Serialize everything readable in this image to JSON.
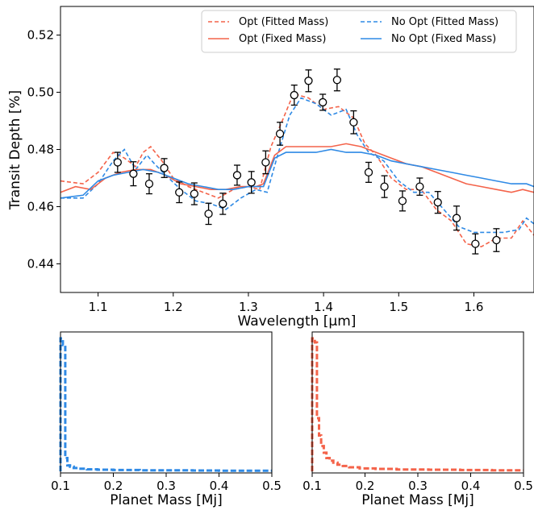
{
  "colors": {
    "opt": "#f4634a",
    "noopt": "#2f8ae5",
    "data": "#000000"
  },
  "chart_data": [
    {
      "type": "line",
      "xlabel": "Wavelength [μm]",
      "ylabel": "Transit Depth [%]",
      "xlim": [
        1.05,
        1.68
      ],
      "ylim": [
        0.43,
        0.53
      ],
      "xticks": [
        "1.1",
        "1.2",
        "1.3",
        "1.4",
        "1.5",
        "1.6"
      ],
      "yticks": [
        "0.44",
        "0.46",
        "0.48",
        "0.50",
        "0.52"
      ],
      "legend_position": "top-right",
      "legend": [
        "Opt (Fitted Mass)",
        "No Opt (Fitted Mass)",
        "Opt (Fixed Mass)",
        "No Opt (Fixed Mass)"
      ],
      "observations": {
        "x": [
          1.126,
          1.147,
          1.168,
          1.188,
          1.208,
          1.228,
          1.247,
          1.266,
          1.285,
          1.304,
          1.323,
          1.342,
          1.361,
          1.38,
          1.399,
          1.418,
          1.44,
          1.46,
          1.481,
          1.505,
          1.528,
          1.552,
          1.577,
          1.602,
          1.63
        ],
        "y": [
          0.4755,
          0.4715,
          0.468,
          0.4735,
          0.465,
          0.4645,
          0.4575,
          0.461,
          0.471,
          0.4685,
          0.4755,
          0.4855,
          0.499,
          0.504,
          0.4965,
          0.5043,
          0.4895,
          0.472,
          0.467,
          0.462,
          0.467,
          0.4615,
          0.456,
          0.447,
          0.4483
        ],
        "err": [
          0.0035,
          0.0042,
          0.0035,
          0.0033,
          0.0036,
          0.0038,
          0.0037,
          0.0037,
          0.0035,
          0.0038,
          0.004,
          0.004,
          0.0035,
          0.0038,
          0.0028,
          0.0038,
          0.004,
          0.0035,
          0.0038,
          0.0035,
          0.003,
          0.0038,
          0.0042,
          0.0035,
          0.004
        ]
      },
      "series": [
        {
          "name": "Opt (Fitted Mass)",
          "style": "dashed",
          "color": "#f4634a",
          "x": [
            1.05,
            1.08,
            1.1,
            1.12,
            1.135,
            1.15,
            1.16,
            1.17,
            1.185,
            1.2,
            1.22,
            1.24,
            1.26,
            1.28,
            1.3,
            1.315,
            1.33,
            1.345,
            1.36,
            1.38,
            1.4,
            1.42,
            1.44,
            1.455,
            1.47,
            1.49,
            1.51,
            1.53,
            1.55,
            1.57,
            1.59,
            1.61,
            1.63,
            1.65,
            1.665,
            1.68
          ],
          "y": [
            0.469,
            0.468,
            0.472,
            0.479,
            0.477,
            0.474,
            0.479,
            0.481,
            0.476,
            0.47,
            0.467,
            0.465,
            0.463,
            0.466,
            0.467,
            0.466,
            0.481,
            0.49,
            0.4995,
            0.498,
            0.494,
            0.495,
            0.491,
            0.482,
            0.478,
            0.47,
            0.466,
            0.466,
            0.459,
            0.455,
            0.447,
            0.446,
            0.449,
            0.449,
            0.455,
            0.45
          ]
        },
        {
          "name": "No Opt (Fitted Mass)",
          "style": "dashed",
          "color": "#2f8ae5",
          "x": [
            1.05,
            1.08,
            1.1,
            1.12,
            1.135,
            1.15,
            1.165,
            1.175,
            1.19,
            1.21,
            1.23,
            1.25,
            1.27,
            1.29,
            1.31,
            1.325,
            1.34,
            1.355,
            1.37,
            1.39,
            1.41,
            1.43,
            1.445,
            1.46,
            1.48,
            1.5,
            1.52,
            1.54,
            1.56,
            1.58,
            1.6,
            1.62,
            1.64,
            1.66,
            1.67,
            1.68
          ],
          "y": [
            0.463,
            0.463,
            0.468,
            0.476,
            0.48,
            0.473,
            0.478,
            0.475,
            0.471,
            0.466,
            0.462,
            0.461,
            0.459,
            0.463,
            0.466,
            0.465,
            0.479,
            0.492,
            0.498,
            0.496,
            0.492,
            0.494,
            0.485,
            0.479,
            0.476,
            0.469,
            0.465,
            0.465,
            0.459,
            0.453,
            0.451,
            0.451,
            0.451,
            0.452,
            0.456,
            0.454
          ]
        },
        {
          "name": "Opt (Fixed Mass)",
          "style": "solid",
          "color": "#f4634a",
          "x": [
            1.05,
            1.07,
            1.09,
            1.11,
            1.13,
            1.15,
            1.17,
            1.19,
            1.21,
            1.23,
            1.25,
            1.27,
            1.29,
            1.31,
            1.32,
            1.335,
            1.35,
            1.37,
            1.39,
            1.41,
            1.43,
            1.45,
            1.47,
            1.49,
            1.51,
            1.53,
            1.55,
            1.57,
            1.59,
            1.61,
            1.63,
            1.65,
            1.665,
            1.68
          ],
          "y": [
            0.465,
            0.467,
            0.466,
            0.47,
            0.472,
            0.473,
            0.473,
            0.471,
            0.468,
            0.467,
            0.466,
            0.466,
            0.467,
            0.467,
            0.468,
            0.478,
            0.481,
            0.481,
            0.481,
            0.481,
            0.482,
            0.481,
            0.479,
            0.477,
            0.475,
            0.474,
            0.472,
            0.47,
            0.468,
            0.467,
            0.466,
            0.465,
            0.466,
            0.465
          ]
        },
        {
          "name": "No Opt (Fixed Mass)",
          "style": "solid",
          "color": "#2f8ae5",
          "x": [
            1.05,
            1.08,
            1.1,
            1.12,
            1.14,
            1.16,
            1.18,
            1.2,
            1.22,
            1.24,
            1.26,
            1.28,
            1.3,
            1.32,
            1.335,
            1.35,
            1.37,
            1.39,
            1.41,
            1.43,
            1.45,
            1.47,
            1.49,
            1.51,
            1.53,
            1.55,
            1.57,
            1.59,
            1.61,
            1.63,
            1.65,
            1.67,
            1.68
          ],
          "y": [
            0.463,
            0.464,
            0.469,
            0.471,
            0.472,
            0.473,
            0.472,
            0.47,
            0.468,
            0.467,
            0.466,
            0.466,
            0.467,
            0.467,
            0.477,
            0.479,
            0.479,
            0.479,
            0.48,
            0.479,
            0.479,
            0.478,
            0.476,
            0.475,
            0.474,
            0.473,
            0.472,
            0.471,
            0.47,
            0.469,
            0.468,
            0.468,
            0.467
          ]
        }
      ]
    },
    {
      "type": "histogram",
      "xlabel": "Planet Mass [Mj]",
      "xlim": [
        0.1,
        0.5
      ],
      "xticks": [
        "0.1",
        "0.2",
        "0.3",
        "0.4",
        "0.5"
      ],
      "color": "#2f8ae5",
      "style": "dashed step",
      "bin_edges": [
        0.1,
        0.1045,
        0.109,
        0.113,
        0.118,
        0.125,
        0.135,
        0.15,
        0.17,
        0.2,
        0.25,
        0.3,
        0.35,
        0.4,
        0.45,
        0.5
      ],
      "values": [
        1.0,
        0.95,
        0.1,
        0.045,
        0.035,
        0.025,
        0.02,
        0.015,
        0.012,
        0.01,
        0.008,
        0.007,
        0.006,
        0.005,
        0.004
      ]
    },
    {
      "type": "histogram",
      "xlabel": "Planet Mass [Mj]",
      "xlim": [
        0.1,
        0.5
      ],
      "xticks": [
        "0.1",
        "0.2",
        "0.3",
        "0.4",
        "0.5"
      ],
      "color": "#f4634a",
      "style": "dashed step",
      "bin_edges": [
        0.1,
        0.105,
        0.109,
        0.113,
        0.117,
        0.122,
        0.127,
        0.133,
        0.14,
        0.148,
        0.158,
        0.17,
        0.19,
        0.22,
        0.26,
        0.32,
        0.38,
        0.44,
        0.5
      ],
      "values": [
        1.0,
        0.97,
        0.4,
        0.27,
        0.19,
        0.14,
        0.1,
        0.08,
        0.065,
        0.05,
        0.04,
        0.03,
        0.022,
        0.018,
        0.014,
        0.012,
        0.01,
        0.008
      ]
    }
  ]
}
